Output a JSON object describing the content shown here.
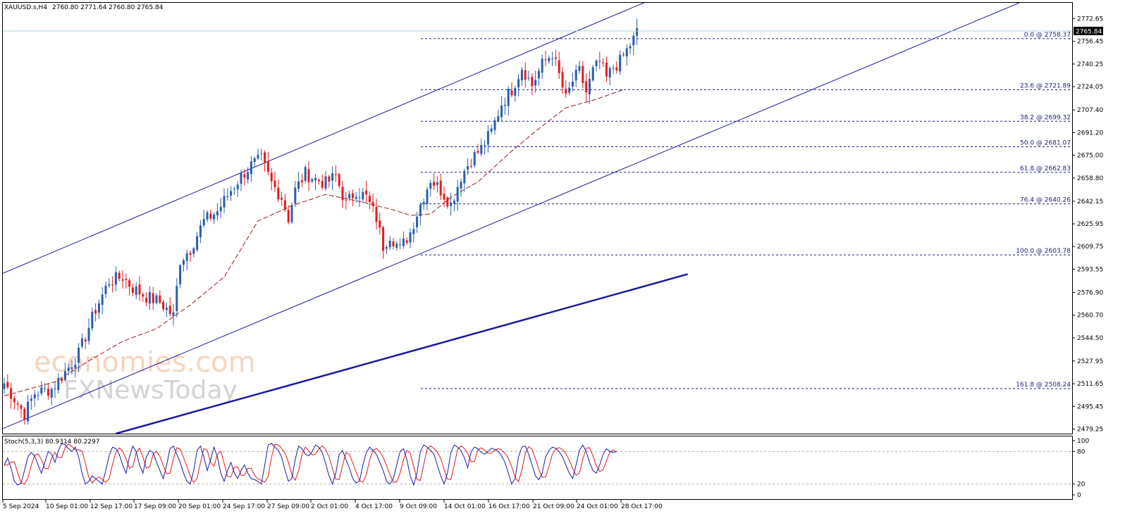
{
  "header": {
    "symbol": "XAUUSD.s,H4",
    "ohlc": "2760.80 2771.64 2760.80 2765.84"
  },
  "stoch_label": "Stoch(5,3,3) 80.9314 80.2297",
  "current_price": "2765.84",
  "watermark": {
    "line1": "economies.com",
    "line2": "FXNewsToday"
  },
  "colors": {
    "bull": "#2a5fa8",
    "bear": "#e8191e",
    "ma": "#9b1a1a",
    "channel": "#1a1a9c",
    "fib": "#1a1a8c",
    "stoch_main": "#1a1ab0",
    "stoch_signal": "#e8191e"
  },
  "chart_data": {
    "type": "candlestick",
    "y_ticks": [
      "2772.65",
      "2756.45",
      "2740.25",
      "2724.05",
      "2707.40",
      "2691.20",
      "2675.00",
      "2658.80",
      "2642.15",
      "2625.95",
      "2609.75",
      "2593.55",
      "2576.90",
      "2560.70",
      "2544.50",
      "2527.95",
      "2511.65",
      "2495.45",
      "2479.25"
    ],
    "ylim": [
      2476,
      2784
    ],
    "x_labels": [
      "5 Sep 2024",
      "10 Sep 01:00",
      "12 Sep 17:00",
      "17 Sep 09:00",
      "20 Sep 01:00",
      "24 Sep 17:00",
      "27 Sep 09:00",
      "2 Oct 01:00",
      "4 Oct 17:00",
      "9 Oct 09:00",
      "14 Oct 01:00",
      "16 Oct 17:00",
      "21 Oct 09:00",
      "24 Oct 01:00",
      "28 Oct 17:00"
    ],
    "anchors": [
      [
        0,
        2512
      ],
      [
        6,
        2490
      ],
      [
        9,
        2505
      ],
      [
        14,
        2508
      ],
      [
        18,
        2520
      ],
      [
        22,
        2533
      ],
      [
        27,
        2565
      ],
      [
        31,
        2585
      ],
      [
        35,
        2588
      ],
      [
        38,
        2580
      ],
      [
        42,
        2574
      ],
      [
        46,
        2570
      ],
      [
        50,
        2560
      ],
      [
        52,
        2600
      ],
      [
        55,
        2608
      ],
      [
        59,
        2628
      ],
      [
        63,
        2635
      ],
      [
        67,
        2650
      ],
      [
        70,
        2660
      ],
      [
        73,
        2668
      ],
      [
        76,
        2672
      ],
      [
        79,
        2655
      ],
      [
        82,
        2645
      ],
      [
        84,
        2630
      ],
      [
        86,
        2650
      ],
      [
        89,
        2662
      ],
      [
        92,
        2658
      ],
      [
        95,
        2655
      ],
      [
        98,
        2660
      ],
      [
        101,
        2640
      ],
      [
        104,
        2650
      ],
      [
        107,
        2645
      ],
      [
        110,
        2630
      ],
      [
        112,
        2610
      ],
      [
        114,
        2618
      ],
      [
        117,
        2608
      ],
      [
        120,
        2620
      ],
      [
        123,
        2640
      ],
      [
        126,
        2658
      ],
      [
        129,
        2650
      ],
      [
        132,
        2640
      ],
      [
        135,
        2660
      ],
      [
        138,
        2672
      ],
      [
        141,
        2680
      ],
      [
        144,
        2692
      ],
      [
        147,
        2712
      ],
      [
        150,
        2722
      ],
      [
        153,
        2738
      ],
      [
        156,
        2725
      ],
      [
        159,
        2740
      ],
      [
        162,
        2748
      ],
      [
        164,
        2732
      ],
      [
        166,
        2715
      ],
      [
        168,
        2728
      ],
      [
        170,
        2735
      ],
      [
        172,
        2720
      ],
      [
        174,
        2735
      ],
      [
        176,
        2742
      ],
      [
        178,
        2730
      ],
      [
        180,
        2738
      ],
      [
        182,
        2742
      ],
      [
        184,
        2750
      ],
      [
        186,
        2758
      ],
      [
        187,
        2766
      ]
    ],
    "ma_anchors": [
      [
        0,
        2503
      ],
      [
        15,
        2513
      ],
      [
        25,
        2528
      ],
      [
        35,
        2542
      ],
      [
        45,
        2551
      ],
      [
        55,
        2568
      ],
      [
        65,
        2588
      ],
      [
        75,
        2628
      ],
      [
        85,
        2639
      ],
      [
        95,
        2647
      ],
      [
        105,
        2642
      ],
      [
        115,
        2636
      ],
      [
        120,
        2632
      ],
      [
        126,
        2633
      ],
      [
        132,
        2645
      ],
      [
        140,
        2656
      ],
      [
        150,
        2678
      ],
      [
        158,
        2694
      ],
      [
        166,
        2709
      ],
      [
        175,
        2715
      ],
      [
        183,
        2722
      ]
    ],
    "fib_levels": [
      {
        "label": "0.0 @ 2758.37",
        "value": 2758.37
      },
      {
        "label": "23.6 @ 2721.89",
        "value": 2721.89
      },
      {
        "label": "38.2 @ 2699.32",
        "value": 2699.32
      },
      {
        "label": "50.0 @ 2681.07",
        "value": 2681.07
      },
      {
        "label": "61.8 @ 2662.83",
        "value": 2662.83
      },
      {
        "label": "76.4 @ 2640.26",
        "value": 2640.26
      },
      {
        "label": "100.0 @ 2603.78",
        "value": 2603.78
      },
      {
        "label": "161.8 @ 2508.24",
        "value": 2508.24
      }
    ],
    "channel_lines": [
      {
        "p1": [
          -1,
          2590
        ],
        "p2": [
          190,
          2785
        ]
      },
      {
        "p1": [
          -1,
          2479
        ],
        "p2": [
          300,
          2784
        ]
      },
      {
        "p1": [
          33,
          2476
        ],
        "p2": [
          202,
          2590
        ]
      }
    ],
    "stochastic": {
      "y_ticks": [
        "100",
        "80",
        "20",
        "0"
      ],
      "levels": [
        80,
        20
      ],
      "main": [
        55,
        68,
        50,
        25,
        18,
        22,
        45,
        70,
        78,
        72,
        55,
        40,
        60,
        80,
        75,
        60,
        82,
        95,
        92,
        85,
        80,
        88,
        70,
        40,
        20,
        25,
        35,
        30,
        25,
        20,
        45,
        72,
        88,
        85,
        75,
        55,
        40,
        70,
        90,
        80,
        55,
        40,
        70,
        82,
        78,
        60,
        45,
        30,
        55,
        85,
        90,
        75,
        60,
        40,
        25,
        20,
        45,
        82,
        90,
        70,
        45,
        65,
        88,
        70,
        40,
        25,
        45,
        60,
        40,
        30,
        45,
        55,
        40,
        30,
        28,
        25,
        20,
        55,
        92,
        95,
        88,
        82,
        70,
        45,
        25,
        30,
        65,
        90,
        85,
        75,
        72,
        80,
        92,
        88,
        78,
        58,
        35,
        20,
        40,
        75,
        82,
        65,
        50,
        30,
        22,
        25,
        55,
        78,
        88,
        82,
        75,
        60,
        45,
        25,
        20,
        30,
        55,
        80,
        85,
        65,
        35,
        18,
        40,
        80,
        92,
        88,
        82,
        75,
        55,
        35,
        20,
        40,
        78,
        92,
        88,
        82,
        68,
        50,
        80,
        88,
        85,
        78,
        75,
        80,
        86,
        84,
        80,
        72,
        60,
        40,
        20,
        30,
        70,
        88,
        90,
        75,
        55,
        35,
        28,
        40,
        70,
        82,
        88,
        86,
        80,
        70,
        55,
        40,
        30,
        55,
        82,
        92,
        80,
        60,
        45,
        40,
        55,
        75,
        85,
        80,
        78,
        80
      ],
      "signal_lag": 2
    }
  }
}
